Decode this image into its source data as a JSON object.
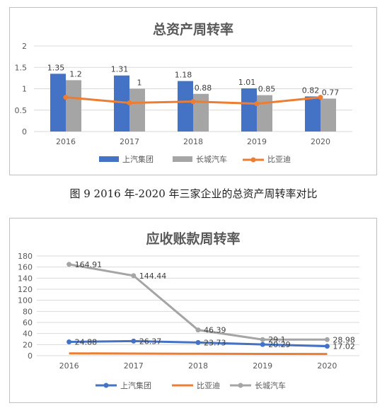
{
  "chart_data": [
    {
      "type": "bar",
      "title": "总资产周转率",
      "categories": [
        "2016",
        "2017",
        "2018",
        "2019",
        "2020"
      ],
      "ylim": [
        0,
        2
      ],
      "yticks": [
        "0",
        "0.5",
        "1",
        "1.5",
        "2"
      ],
      "series": [
        {
          "name": "上汽集团",
          "type": "bar",
          "color": "#4472C4",
          "values": [
            1.35,
            1.31,
            1.18,
            1.01,
            0.82
          ],
          "labels": [
            "1.35",
            "1.31",
            "1.18",
            "1.01",
            "0.82"
          ]
        },
        {
          "name": "长城汽车",
          "type": "bar",
          "color": "#A5A5A5",
          "values": [
            1.2,
            1.0,
            0.88,
            0.85,
            0.77
          ],
          "labels": [
            "1.2",
            "1",
            "0.88",
            "0.85",
            "0.77"
          ]
        },
        {
          "name": "比亚迪",
          "type": "line",
          "color": "#ED7D31",
          "values": [
            0.8,
            0.67,
            0.7,
            0.65,
            0.8
          ]
        }
      ],
      "legend": [
        "上汽集团",
        "长城汽车",
        "比亚迪"
      ],
      "legend_position": "bottom",
      "grid": true
    },
    {
      "type": "line",
      "title": "应收账款周转率",
      "categories": [
        "2016",
        "2017",
        "2018",
        "2019",
        "2020"
      ],
      "ylim": [
        0,
        180
      ],
      "yticks": [
        "0",
        "20",
        "40",
        "60",
        "80",
        "100",
        "120",
        "140",
        "160",
        "180"
      ],
      "series": [
        {
          "name": "上汽集团",
          "color": "#4472C4",
          "values": [
            24.88,
            26.37,
            23.73,
            20.29,
            17.02
          ],
          "labels": [
            "24.88",
            "26.37",
            "23.73",
            "20.29",
            "17.02"
          ]
        },
        {
          "name": "比亚迪",
          "color": "#ED7D31",
          "values": [
            4.2,
            3.8,
            3.5,
            3.2,
            3.0
          ]
        },
        {
          "name": "长城汽车",
          "color": "#A5A5A5",
          "values": [
            164.91,
            144.44,
            46.39,
            29.1,
            28.98
          ],
          "labels": [
            "164.91",
            "144.44",
            "46.39",
            "29.1",
            "28.98"
          ]
        }
      ],
      "legend": [
        "上汽集团",
        "比亚迪",
        "长城汽车"
      ],
      "legend_position": "bottom",
      "grid": true
    }
  ],
  "caption": "图 9  2016 年-2020 年三家企业的总资产周转率对比"
}
